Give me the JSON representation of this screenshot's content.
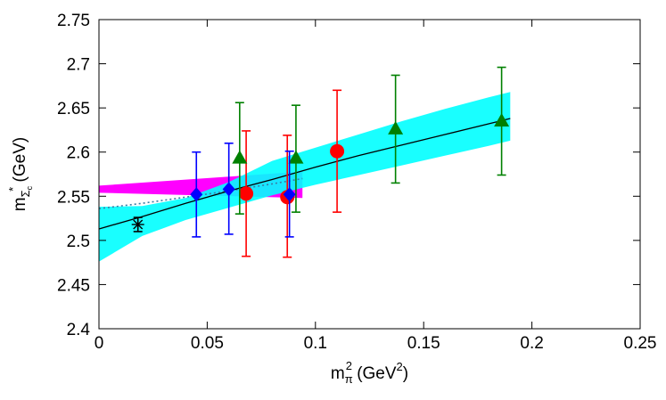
{
  "chart_data": {
    "type": "scatter",
    "xlabel": {
      "base": "m",
      "sub": "π",
      "sup": "2",
      "rest_before": " (GeV",
      "rest_sup": "2",
      "rest_after": ")"
    },
    "ylabel": {
      "base": "m",
      "sub": "Σ",
      "sub2": "c",
      "sup": "*",
      "rest": " (GeV)"
    },
    "xlim": [
      0,
      0.25
    ],
    "ylim": [
      2.4,
      2.75
    ],
    "xticks": [
      {
        "value": 0,
        "label": "0"
      },
      {
        "value": 0.05,
        "label": "0.05"
      },
      {
        "value": 0.1,
        "label": "0.1"
      },
      {
        "value": 0.15,
        "label": "0.15"
      },
      {
        "value": 0.2,
        "label": "0.2"
      },
      {
        "value": 0.25,
        "label": "0.25"
      }
    ],
    "yticks": [
      {
        "value": 2.4,
        "label": "2.4"
      },
      {
        "value": 2.45,
        "label": "2.45"
      },
      {
        "value": 2.5,
        "label": "2.5"
      },
      {
        "value": 2.55,
        "label": "2.55"
      },
      {
        "value": 2.6,
        "label": "2.6"
      },
      {
        "value": 2.65,
        "label": "2.65"
      },
      {
        "value": 2.7,
        "label": "2.7"
      },
      {
        "value": 2.75,
        "label": "2.75"
      }
    ],
    "grid": false,
    "legend": "none",
    "bands": [
      {
        "color": "#ff00ff",
        "x": [
          0.0,
          0.094
        ],
        "lower": [
          2.554,
          2.548
        ],
        "upper": [
          2.562,
          2.578
        ]
      },
      {
        "color": "#00ffff",
        "x": [
          0.0,
          0.02,
          0.04,
          0.06,
          0.08,
          0.1,
          0.12,
          0.14,
          0.16,
          0.18,
          0.19
        ],
        "lower": [
          2.476,
          2.505,
          2.523,
          2.537,
          2.551,
          2.563,
          2.574,
          2.585,
          2.596,
          2.607,
          2.613
        ],
        "upper": [
          2.538,
          2.539,
          2.548,
          2.566,
          2.59,
          2.605,
          2.62,
          2.635,
          2.649,
          2.662,
          2.668
        ]
      }
    ],
    "fit_solid": {
      "color": "#000000",
      "x": [
        0.0,
        0.02,
        0.04,
        0.06,
        0.08,
        0.1,
        0.12,
        0.14,
        0.16,
        0.18,
        0.19
      ],
      "y": [
        2.513,
        2.527,
        2.542,
        2.556,
        2.569,
        2.583,
        2.596,
        2.608,
        2.62,
        2.632,
        2.638
      ]
    },
    "fit_dotted": {
      "color": "#3a7ca5",
      "x": [
        0.0,
        0.02,
        0.04,
        0.06,
        0.08,
        0.094
      ],
      "y": [
        2.536,
        2.542,
        2.549,
        2.556,
        2.564,
        2.57
      ]
    },
    "series": [
      {
        "marker": "circle",
        "color": "#ff0000",
        "points": [
          {
            "x": 0.068,
            "y": 2.553,
            "lo": 2.482,
            "hi": 2.624
          },
          {
            "x": 0.087,
            "y": 2.549,
            "lo": 2.481,
            "hi": 2.619
          },
          {
            "x": 0.11,
            "y": 2.601,
            "lo": 2.532,
            "hi": 2.67
          }
        ]
      },
      {
        "marker": "triangle",
        "color": "#008000",
        "points": [
          {
            "x": 0.065,
            "y": 2.593,
            "lo": 2.53,
            "hi": 2.656
          },
          {
            "x": 0.091,
            "y": 2.593,
            "lo": 2.532,
            "hi": 2.653
          },
          {
            "x": 0.137,
            "y": 2.626,
            "lo": 2.565,
            "hi": 2.687
          },
          {
            "x": 0.186,
            "y": 2.635,
            "lo": 2.574,
            "hi": 2.696
          }
        ]
      },
      {
        "marker": "diamond",
        "color": "#0000ff",
        "points": [
          {
            "x": 0.045,
            "y": 2.552,
            "lo": 2.504,
            "hi": 2.6
          },
          {
            "x": 0.06,
            "y": 2.558,
            "lo": 2.507,
            "hi": 2.61
          },
          {
            "x": 0.088,
            "y": 2.552,
            "lo": 2.504,
            "hi": 2.601
          }
        ]
      },
      {
        "marker": "star",
        "color": "#000000",
        "points": [
          {
            "x": 0.018,
            "y": 2.518,
            "lo": 2.51,
            "hi": 2.526
          }
        ]
      }
    ]
  }
}
